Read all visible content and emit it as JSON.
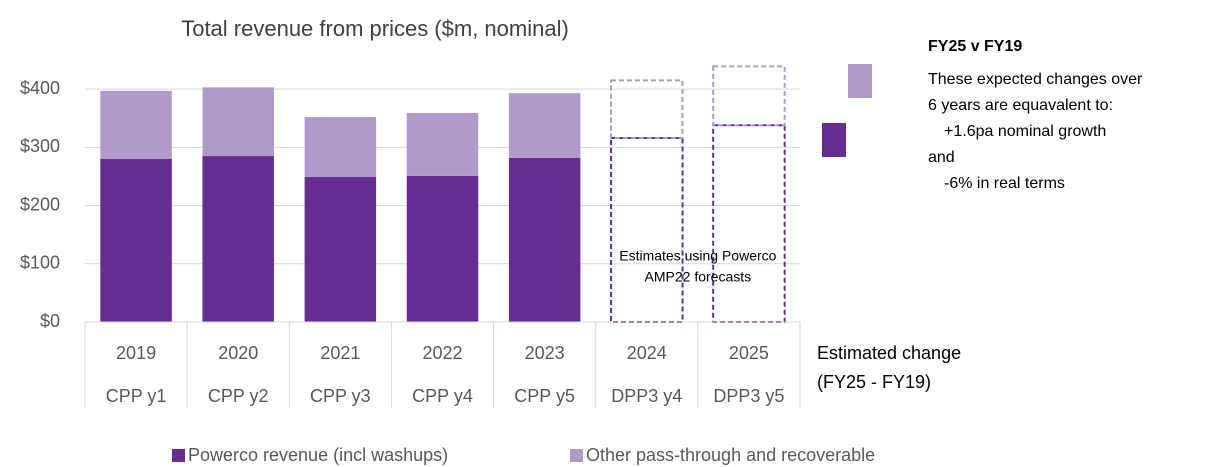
{
  "chart_data": {
    "type": "stacked_bar",
    "title": "Total revenue from prices ($m, nominal)",
    "categories": [
      "2019",
      "2020",
      "2021",
      "2022",
      "2023",
      "2024",
      "2025"
    ],
    "periods": [
      "CPP y1",
      "CPP y2",
      "CPP y3",
      "CPP y4",
      "CPP y5",
      "DPP3 y4",
      "DPP3 y5"
    ],
    "dashed": [
      false,
      false,
      false,
      false,
      false,
      true,
      true
    ],
    "series": [
      {
        "name": "Powerco revenue (incl washups)",
        "color": "#662d91",
        "values": [
          280,
          285,
          249,
          251,
          282,
          316,
          338
        ]
      },
      {
        "name": "Other pass-through and recoverable",
        "color": "#b09acb",
        "values": [
          117,
          118,
          103,
          108,
          111,
          99,
          101
        ]
      }
    ],
    "ylim": [
      0,
      450
    ],
    "yticks": [
      {
        "value": 0,
        "label": "$0"
      },
      {
        "value": 100,
        "label": "$100"
      },
      {
        "value": 200,
        "label": "$200"
      },
      {
        "value": 300,
        "label": "$300"
      },
      {
        "value": 400,
        "label": "$400"
      }
    ],
    "grid": true,
    "annotation": [
      "Estimates using Powerco",
      "AMP22 forecasts"
    ],
    "extra_column": [
      "Estimated change",
      "(FY25 - FY19)"
    ],
    "side_panel": {
      "heading": "FY25 v FY19",
      "lines": [
        "These expected changes over",
        "6 years are equavalent to:",
        "+1.6pa nominal growth",
        "and",
        "-6% in real terms"
      ]
    }
  }
}
